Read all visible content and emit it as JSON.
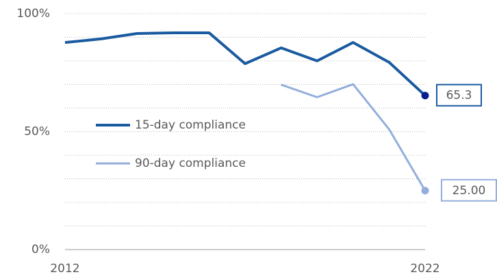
{
  "chart_data": {
    "type": "line",
    "x": [
      2012,
      2013,
      2014,
      2015,
      2016,
      2017,
      2018,
      2019,
      2020,
      2021,
      2022
    ],
    "xlim": [
      2012,
      2022
    ],
    "xticks": [
      2012,
      2022
    ],
    "ylim": [
      0,
      100
    ],
    "yticks": [
      {
        "value": 0,
        "label": "0%"
      },
      {
        "value": 50,
        "label": "50%"
      },
      {
        "value": 100,
        "label": "100%"
      }
    ],
    "minor_yticks": [
      10,
      20,
      30,
      40,
      60,
      70,
      80,
      90
    ],
    "grid": true,
    "legend": "left",
    "series": [
      {
        "name": "15-day compliance",
        "color": "#1a5aa0",
        "marker_color": "#0b1f8c",
        "width": 4,
        "values": [
          87.8,
          89.3,
          91.6,
          91.9,
          91.9,
          78.8,
          85.5,
          80.0,
          87.8,
          79.4,
          65.3
        ],
        "value_labels": [
          null,
          null,
          null,
          null,
          null,
          null,
          null,
          null,
          null,
          null,
          "65.3"
        ]
      },
      {
        "name": "90-day compliance",
        "color": "#93aedb",
        "marker_color": "#93aedb",
        "width": 3,
        "values": [
          null,
          null,
          null,
          null,
          null,
          null,
          69.9,
          64.6,
          70.1,
          51.0,
          25.0
        ],
        "value_labels": [
          null,
          null,
          null,
          null,
          null,
          null,
          null,
          null,
          null,
          null,
          "25.00"
        ]
      }
    ]
  }
}
